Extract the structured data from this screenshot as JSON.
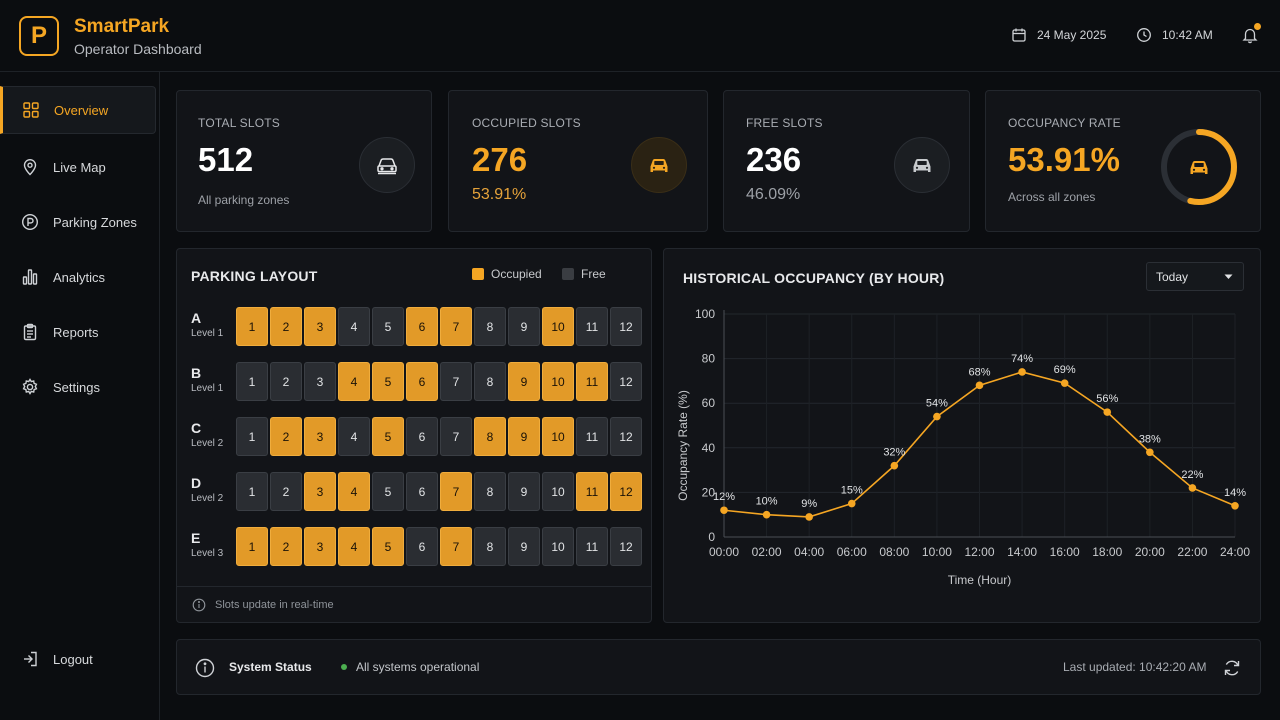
{
  "brand": {
    "title": "SmartPark",
    "subtitle": "Operator Dashboard",
    "logo_letter": "P"
  },
  "header": {
    "date": "24 May 2025",
    "time": "10:42 AM",
    "notification_dot": true
  },
  "sidebar": {
    "items": [
      {
        "label": "Overview",
        "icon": "grid-icon",
        "active": true
      },
      {
        "label": "Live Map",
        "icon": "map-pin-icon",
        "active": false
      },
      {
        "label": "Parking Zones",
        "icon": "parking-icon",
        "active": false
      },
      {
        "label": "Analytics",
        "icon": "bar-chart-icon",
        "active": false
      },
      {
        "label": "Reports",
        "icon": "clipboard-icon",
        "active": false
      },
      {
        "label": "Settings",
        "icon": "gear-icon",
        "active": false
      }
    ],
    "logout": "Logout"
  },
  "stats": {
    "total": {
      "label": "TOTAL SLOTS",
      "value": "512",
      "sub": "All parking zones"
    },
    "occupied": {
      "label": "OCCUPIED SLOTS",
      "value": "276",
      "sub": "53.91%"
    },
    "free": {
      "label": "FREE SLOTS",
      "value": "236",
      "sub": "46.09%"
    },
    "rate": {
      "label": "OCCUPANCY RATE",
      "value": "53.91%",
      "sub": "Across all zones",
      "fraction": 0.5391
    }
  },
  "layout": {
    "title": "PARKING LAYOUT",
    "legend_occupied": "Occupied",
    "legend_free": "Free",
    "footer": "Slots update in real-time",
    "rows": [
      {
        "letter": "A",
        "level": "Level 1",
        "occupied": [
          1,
          2,
          3,
          6,
          7,
          10
        ]
      },
      {
        "letter": "B",
        "level": "Level 1",
        "occupied": [
          4,
          5,
          6,
          9,
          10,
          11
        ]
      },
      {
        "letter": "C",
        "level": "Level 2",
        "occupied": [
          2,
          3,
          5,
          8,
          9,
          10
        ]
      },
      {
        "letter": "D",
        "level": "Level 2",
        "occupied": [
          3,
          4,
          7,
          11,
          12
        ]
      },
      {
        "letter": "E",
        "level": "Level 3",
        "occupied": [
          1,
          2,
          3,
          4,
          5,
          7
        ]
      }
    ],
    "slot_numbers": [
      "1",
      "2",
      "3",
      "4",
      "5",
      "6",
      "7",
      "8",
      "9",
      "10",
      "11",
      "12"
    ]
  },
  "history": {
    "title": "HISTORICAL OCCUPANCY (BY HOUR)",
    "filter": "Today"
  },
  "chart_data": {
    "type": "line",
    "title": "HISTORICAL OCCUPANCY (BY HOUR)",
    "xlabel": "Time (Hour)",
    "ylabel": "Occupancy Rate (%)",
    "ylim": [
      0,
      100
    ],
    "yticks": [
      0,
      20,
      40,
      60,
      80,
      100
    ],
    "x": [
      "00:00",
      "02:00",
      "04:00",
      "06:00",
      "08:00",
      "10:00",
      "12:00",
      "14:00",
      "16:00",
      "18:00",
      "20:00",
      "22:00",
      "24:00"
    ],
    "values": [
      12,
      10,
      9,
      15,
      32,
      54,
      68,
      74,
      69,
      56,
      38,
      22,
      14
    ],
    "labels": [
      "12%",
      "10%",
      "9%",
      "15%",
      "32%",
      "54%",
      "68%",
      "74%",
      "69%",
      "56%",
      "38%",
      "22%",
      "14%"
    ],
    "color": "#f5a623",
    "grid": true
  },
  "status": {
    "title": "System Status",
    "message": "All systems operational",
    "updated": "Last updated: 10:42:20 AM",
    "ok_color": "#4caf50"
  },
  "colors": {
    "accent": "#f5a623",
    "background": "#0b0d10",
    "card": "#121418"
  }
}
